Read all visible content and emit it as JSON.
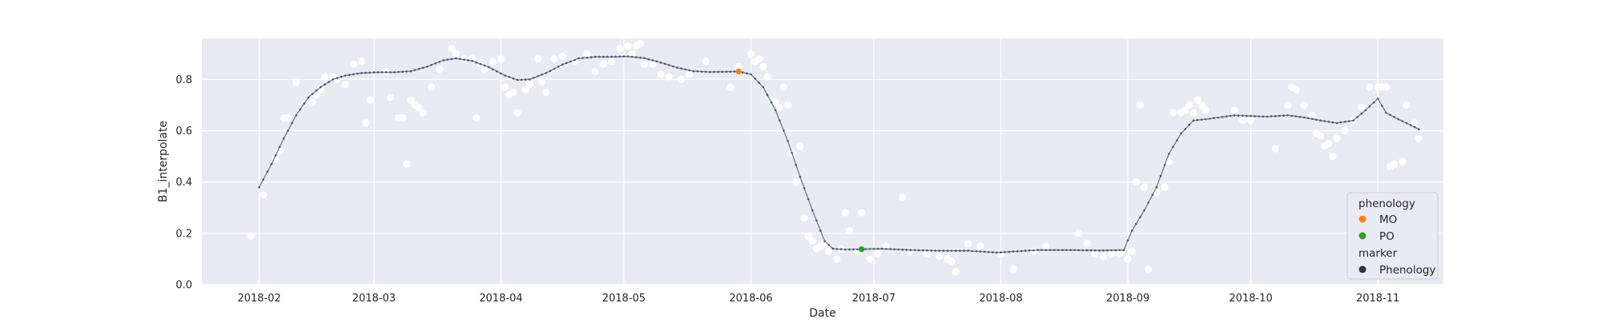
{
  "chart_data": {
    "type": "scatter",
    "title": "",
    "xlabel": "Date",
    "ylabel": "B1_interpolate",
    "xlim": [
      "2018-01-18",
      "2018-11-17"
    ],
    "ylim": [
      0.0,
      0.96
    ],
    "x_ticks": [
      "2018-02",
      "2018-03",
      "2018-04",
      "2018-05",
      "2018-06",
      "2018-07",
      "2018-08",
      "2018-09",
      "2018-10",
      "2018-11"
    ],
    "y_ticks": [
      "0.0",
      "0.2",
      "0.4",
      "0.6",
      "0.8"
    ],
    "grid": true,
    "legend_placement": "lower-right",
    "legend": {
      "title1": "phenology",
      "entries": [
        {
          "label": "MO",
          "color": "#ff7f0e"
        },
        {
          "label": "PO",
          "color": "#2ca02c"
        }
      ],
      "title2": "marker",
      "marker_entries": [
        {
          "label": "Phenology",
          "color": "#333333"
        }
      ]
    },
    "colors": {
      "background": "#eaeaf2",
      "grid": "#ffffff",
      "line": "#6c7b8a",
      "dots": "#4a5a6a",
      "raw_points": "#ffffff"
    },
    "series": [
      {
        "role": "smoothed-line",
        "points": [
          [
            "2018-02-01",
            0.38
          ],
          [
            "2018-02-04",
            0.47
          ],
          [
            "2018-02-07",
            0.57
          ],
          [
            "2018-02-10",
            0.66
          ],
          [
            "2018-02-13",
            0.73
          ],
          [
            "2018-02-16",
            0.77
          ],
          [
            "2018-02-19",
            0.8
          ],
          [
            "2018-02-22",
            0.815
          ],
          [
            "2018-02-26",
            0.825
          ],
          [
            "2018-03-02",
            0.828
          ],
          [
            "2018-03-06",
            0.828
          ],
          [
            "2018-03-10",
            0.832
          ],
          [
            "2018-03-14",
            0.85
          ],
          [
            "2018-03-18",
            0.875
          ],
          [
            "2018-03-21",
            0.882
          ],
          [
            "2018-03-25",
            0.872
          ],
          [
            "2018-03-29",
            0.848
          ],
          [
            "2018-04-02",
            0.815
          ],
          [
            "2018-04-05",
            0.798
          ],
          [
            "2018-04-08",
            0.8
          ],
          [
            "2018-04-12",
            0.825
          ],
          [
            "2018-04-16",
            0.858
          ],
          [
            "2018-04-20",
            0.882
          ],
          [
            "2018-04-24",
            0.888
          ],
          [
            "2018-04-28",
            0.888
          ],
          [
            "2018-05-02",
            0.89
          ],
          [
            "2018-05-06",
            0.883
          ],
          [
            "2018-05-10",
            0.866
          ],
          [
            "2018-05-14",
            0.846
          ],
          [
            "2018-05-18",
            0.832
          ],
          [
            "2018-05-22",
            0.829
          ],
          [
            "2018-05-26",
            0.83
          ],
          [
            "2018-05-29",
            0.831
          ],
          [
            "2018-06-01",
            0.82
          ],
          [
            "2018-06-04",
            0.77
          ],
          [
            "2018-06-07",
            0.68
          ],
          [
            "2018-06-10",
            0.56
          ],
          [
            "2018-06-13",
            0.42
          ],
          [
            "2018-06-16",
            0.29
          ],
          [
            "2018-06-19",
            0.17
          ],
          [
            "2018-06-21",
            0.14
          ],
          [
            "2018-06-24",
            0.137
          ],
          [
            "2018-06-28",
            0.138
          ],
          [
            "2018-07-03",
            0.14
          ],
          [
            "2018-07-10",
            0.135
          ],
          [
            "2018-07-17",
            0.132
          ],
          [
            "2018-07-24",
            0.132
          ],
          [
            "2018-07-31",
            0.125
          ],
          [
            "2018-08-02",
            0.127
          ],
          [
            "2018-08-10",
            0.135
          ],
          [
            "2018-08-18",
            0.135
          ],
          [
            "2018-08-25",
            0.133
          ],
          [
            "2018-08-31",
            0.135
          ],
          [
            "2018-09-02",
            0.21
          ],
          [
            "2018-09-05",
            0.29
          ],
          [
            "2018-09-08",
            0.38
          ],
          [
            "2018-09-11",
            0.51
          ],
          [
            "2018-09-14",
            0.59
          ],
          [
            "2018-09-17",
            0.64
          ],
          [
            "2018-09-20",
            0.645
          ],
          [
            "2018-09-27",
            0.66
          ],
          [
            "2018-10-05",
            0.655
          ],
          [
            "2018-10-10",
            0.66
          ],
          [
            "2018-10-14",
            0.652
          ],
          [
            "2018-10-18",
            0.64
          ],
          [
            "2018-10-22",
            0.63
          ],
          [
            "2018-10-26",
            0.64
          ],
          [
            "2018-10-29",
            0.68
          ],
          [
            "2018-11-01",
            0.725
          ],
          [
            "2018-11-03",
            0.67
          ],
          [
            "2018-11-06",
            0.645
          ],
          [
            "2018-11-09",
            0.622
          ],
          [
            "2018-11-11",
            0.606
          ]
        ]
      },
      {
        "role": "raw-observations",
        "points": [
          [
            "2018-01-30",
            0.19
          ],
          [
            "2018-02-02",
            0.35
          ],
          [
            "2018-02-05",
            0.49
          ],
          [
            "2018-02-06",
            0.52
          ],
          [
            "2018-02-07",
            0.65
          ],
          [
            "2018-02-08",
            0.65
          ],
          [
            "2018-02-10",
            0.79
          ],
          [
            "2018-02-14",
            0.71
          ],
          [
            "2018-02-15",
            0.74
          ],
          [
            "2018-02-16",
            0.76
          ],
          [
            "2018-02-17",
            0.81
          ],
          [
            "2018-02-19",
            0.81
          ],
          [
            "2018-02-20",
            0.8
          ],
          [
            "2018-02-22",
            0.78
          ],
          [
            "2018-02-24",
            0.86
          ],
          [
            "2018-02-26",
            0.87
          ],
          [
            "2018-02-27",
            0.63
          ],
          [
            "2018-02-28",
            0.72
          ],
          [
            "2018-03-04",
            0.83
          ],
          [
            "2018-03-05",
            0.73
          ],
          [
            "2018-03-07",
            0.65
          ],
          [
            "2018-03-08",
            0.65
          ],
          [
            "2018-03-09",
            0.47
          ],
          [
            "2018-03-10",
            0.72
          ],
          [
            "2018-03-11",
            0.7
          ],
          [
            "2018-03-12",
            0.69
          ],
          [
            "2018-03-13",
            0.67
          ],
          [
            "2018-03-15",
            0.77
          ],
          [
            "2018-03-17",
            0.84
          ],
          [
            "2018-03-20",
            0.92
          ],
          [
            "2018-03-21",
            0.9
          ],
          [
            "2018-03-23",
            0.88
          ],
          [
            "2018-03-25",
            0.88
          ],
          [
            "2018-03-26",
            0.65
          ],
          [
            "2018-03-27",
            0.86
          ],
          [
            "2018-03-28",
            0.84
          ],
          [
            "2018-03-30",
            0.87
          ],
          [
            "2018-04-01",
            0.88
          ],
          [
            "2018-04-02",
            0.77
          ],
          [
            "2018-04-03",
            0.74
          ],
          [
            "2018-04-04",
            0.75
          ],
          [
            "2018-04-05",
            0.67
          ],
          [
            "2018-04-07",
            0.76
          ],
          [
            "2018-04-08",
            0.78
          ],
          [
            "2018-04-10",
            0.88
          ],
          [
            "2018-04-11",
            0.79
          ],
          [
            "2018-04-12",
            0.75
          ],
          [
            "2018-04-14",
            0.88
          ],
          [
            "2018-04-16",
            0.89
          ],
          [
            "2018-04-19",
            0.87
          ],
          [
            "2018-04-22",
            0.9
          ],
          [
            "2018-04-24",
            0.83
          ],
          [
            "2018-04-26",
            0.86
          ],
          [
            "2018-04-28",
            0.87
          ],
          [
            "2018-04-30",
            0.92
          ],
          [
            "2018-05-02",
            0.93
          ],
          [
            "2018-05-03",
            0.9
          ],
          [
            "2018-05-04",
            0.93
          ],
          [
            "2018-05-05",
            0.94
          ],
          [
            "2018-05-06",
            0.86
          ],
          [
            "2018-05-08",
            0.86
          ],
          [
            "2018-05-10",
            0.82
          ],
          [
            "2018-05-12",
            0.81
          ],
          [
            "2018-05-15",
            0.8
          ],
          [
            "2018-05-17",
            0.82
          ],
          [
            "2018-05-21",
            0.87
          ],
          [
            "2018-05-27",
            0.77
          ],
          [
            "2018-05-29",
            0.85
          ],
          [
            "2018-06-01",
            0.9
          ],
          [
            "2018-06-02",
            0.87
          ],
          [
            "2018-06-03",
            0.88
          ],
          [
            "2018-06-04",
            0.85
          ],
          [
            "2018-06-05",
            0.81
          ],
          [
            "2018-06-06",
            0.72
          ],
          [
            "2018-06-07",
            0.71
          ],
          [
            "2018-06-08",
            0.69
          ],
          [
            "2018-06-09",
            0.77
          ],
          [
            "2018-06-10",
            0.7
          ],
          [
            "2018-06-11",
            0.51
          ],
          [
            "2018-06-12",
            0.4
          ],
          [
            "2018-06-13",
            0.54
          ],
          [
            "2018-06-14",
            0.26
          ],
          [
            "2018-06-15",
            0.19
          ],
          [
            "2018-06-16",
            0.17
          ],
          [
            "2018-06-17",
            0.14
          ],
          [
            "2018-06-18",
            0.15
          ],
          [
            "2018-06-19",
            0.16
          ],
          [
            "2018-06-20",
            0.13
          ],
          [
            "2018-06-22",
            0.1
          ],
          [
            "2018-06-23",
            0.14
          ],
          [
            "2018-06-24",
            0.28
          ],
          [
            "2018-06-25",
            0.21
          ],
          [
            "2018-06-27",
            0.13
          ],
          [
            "2018-06-28",
            0.28
          ],
          [
            "2018-06-30",
            0.1
          ],
          [
            "2018-07-02",
            0.12
          ],
          [
            "2018-07-04",
            0.15
          ],
          [
            "2018-07-08",
            0.34
          ],
          [
            "2018-07-10",
            0.13
          ],
          [
            "2018-07-14",
            0.12
          ],
          [
            "2018-07-17",
            0.11
          ],
          [
            "2018-07-19",
            0.1
          ],
          [
            "2018-07-20",
            0.09
          ],
          [
            "2018-07-21",
            0.05
          ],
          [
            "2018-07-24",
            0.16
          ],
          [
            "2018-07-27",
            0.15
          ],
          [
            "2018-08-01",
            0.12
          ],
          [
            "2018-08-04",
            0.06
          ],
          [
            "2018-08-09",
            0.13
          ],
          [
            "2018-08-12",
            0.15
          ],
          [
            "2018-08-20",
            0.2
          ],
          [
            "2018-08-22",
            0.16
          ],
          [
            "2018-08-24",
            0.12
          ],
          [
            "2018-08-26",
            0.11
          ],
          [
            "2018-08-28",
            0.12
          ],
          [
            "2018-08-30",
            0.12
          ],
          [
            "2018-09-01",
            0.1
          ],
          [
            "2018-09-02",
            0.13
          ],
          [
            "2018-09-03",
            0.4
          ],
          [
            "2018-09-04",
            0.7
          ],
          [
            "2018-09-05",
            0.38
          ],
          [
            "2018-09-06",
            0.06
          ],
          [
            "2018-09-08",
            0.36
          ],
          [
            "2018-09-10",
            0.38
          ],
          [
            "2018-09-11",
            0.48
          ],
          [
            "2018-09-12",
            0.67
          ],
          [
            "2018-09-14",
            0.67
          ],
          [
            "2018-09-15",
            0.68
          ],
          [
            "2018-09-16",
            0.7
          ],
          [
            "2018-09-17",
            0.67
          ],
          [
            "2018-09-18",
            0.72
          ],
          [
            "2018-09-19",
            0.7
          ],
          [
            "2018-09-20",
            0.68
          ],
          [
            "2018-09-27",
            0.68
          ],
          [
            "2018-09-29",
            0.64
          ],
          [
            "2018-10-01",
            0.64
          ],
          [
            "2018-10-07",
            0.53
          ],
          [
            "2018-10-10",
            0.7
          ],
          [
            "2018-10-11",
            0.77
          ],
          [
            "2018-10-12",
            0.76
          ],
          [
            "2018-10-14",
            0.7
          ],
          [
            "2018-10-16",
            0.66
          ],
          [
            "2018-10-17",
            0.59
          ],
          [
            "2018-10-18",
            0.58
          ],
          [
            "2018-10-19",
            0.54
          ],
          [
            "2018-10-20",
            0.55
          ],
          [
            "2018-10-21",
            0.5
          ],
          [
            "2018-10-22",
            0.57
          ],
          [
            "2018-10-24",
            0.6
          ],
          [
            "2018-10-26",
            0.64
          ],
          [
            "2018-10-28",
            0.69
          ],
          [
            "2018-10-30",
            0.77
          ],
          [
            "2018-11-01",
            0.77
          ],
          [
            "2018-11-02",
            0.77
          ],
          [
            "2018-11-03",
            0.77
          ],
          [
            "2018-11-04",
            0.46
          ],
          [
            "2018-11-05",
            0.47
          ],
          [
            "2018-11-07",
            0.48
          ],
          [
            "2018-11-08",
            0.7
          ],
          [
            "2018-11-10",
            0.63
          ],
          [
            "2018-11-11",
            0.57
          ]
        ]
      }
    ],
    "phenology_points": [
      {
        "label": "MO",
        "date": "2018-05-29",
        "value": 0.831,
        "color": "#ff7f0e"
      },
      {
        "label": "PO",
        "date": "2018-06-28",
        "value": 0.138,
        "color": "#2ca02c"
      }
    ]
  }
}
